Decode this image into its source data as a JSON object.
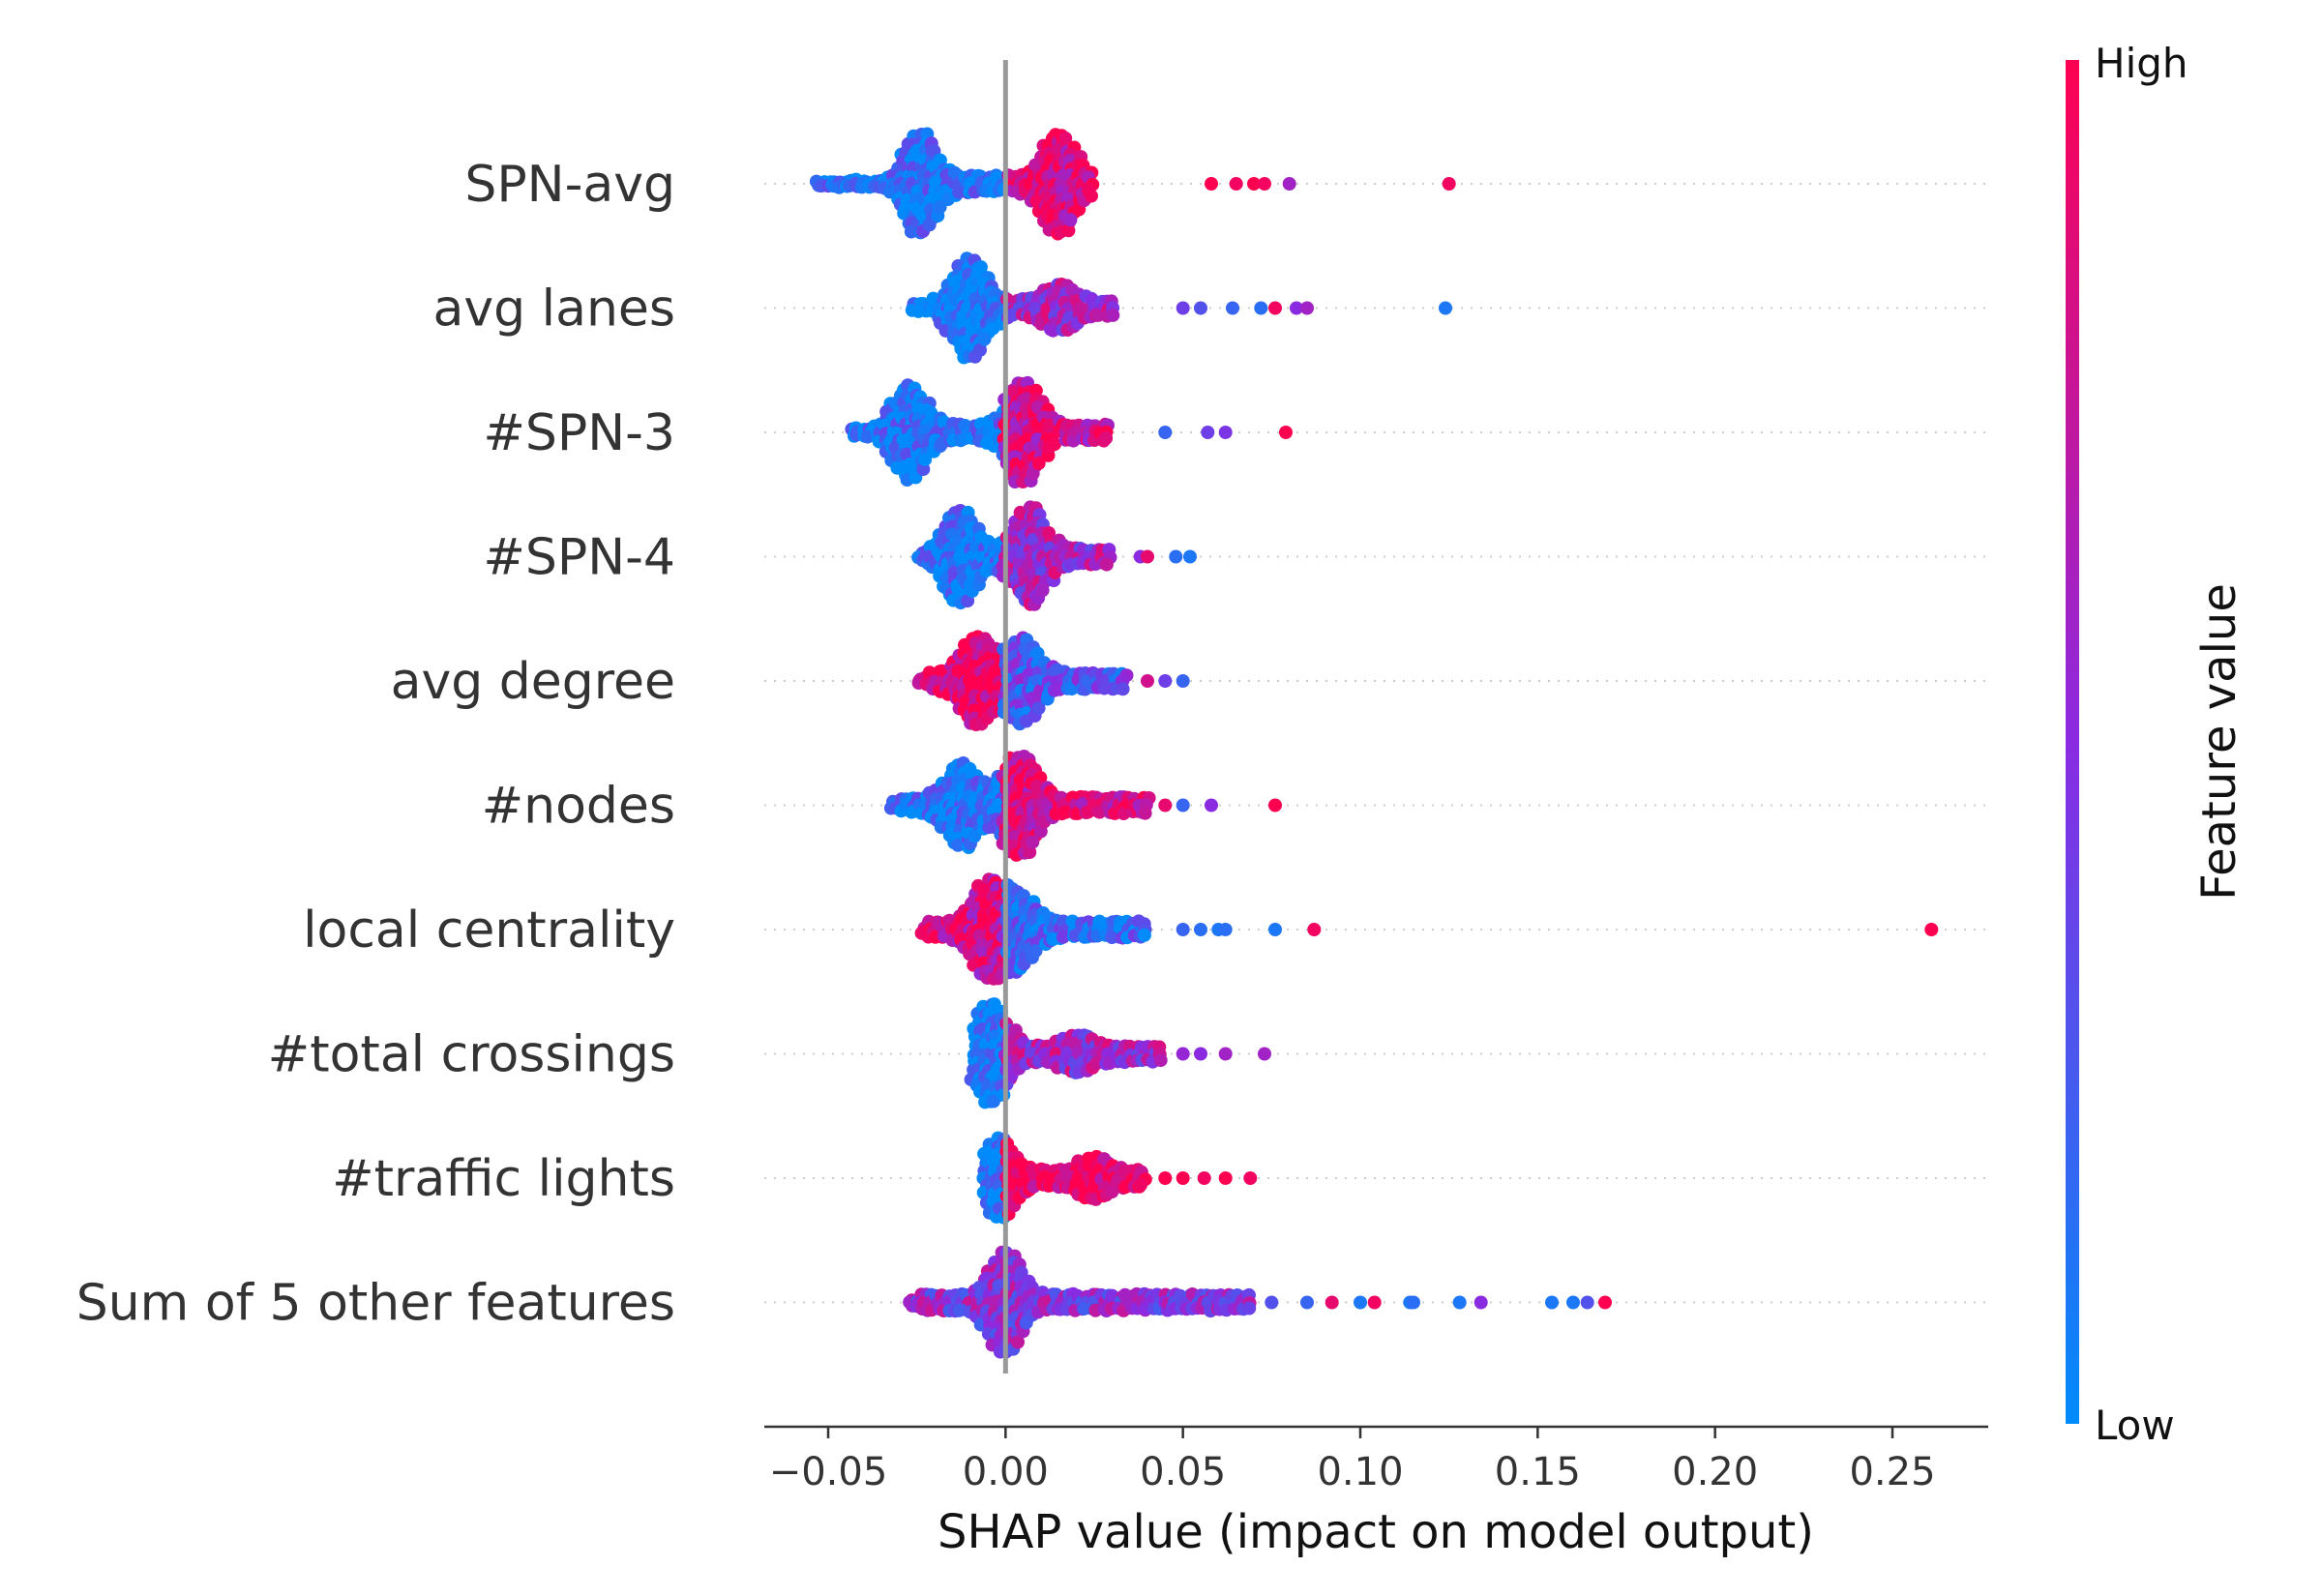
{
  "chart_data": {
    "type": "scatter",
    "subtype": "shap-beeswarm",
    "xlabel": "SHAP value (impact on model output)",
    "xlim": [
      -0.068,
      0.277
    ],
    "x_ticks": [
      -0.05,
      0.0,
      0.05,
      0.1,
      0.15,
      0.2,
      0.25
    ],
    "x_tick_labels": [
      "−0.05",
      "0.00",
      "0.05",
      "0.10",
      "0.15",
      "0.20",
      "0.25"
    ],
    "zero_line": 0.0,
    "colorbar": {
      "title": "Feature value",
      "high_label": "High",
      "low_label": "Low",
      "low_color": "#008bfb",
      "high_color": "#ff0051",
      "mid_color": "#8a2be2"
    },
    "features": [
      {
        "name": "SPN-avg",
        "min": -0.053,
        "max": 0.125,
        "core_min": -0.03,
        "core_max": 0.025,
        "peaks": [
          {
            "x": -0.024,
            "h": 0.95
          },
          {
            "x": 0.015,
            "h": 1.0
          }
        ],
        "neg_color": 0.1,
        "pos_color": 0.85,
        "outliers": [
          {
            "x": 0.058,
            "c": 1.0
          },
          {
            "x": 0.065,
            "c": 0.95
          },
          {
            "x": 0.07,
            "c": 1.0
          },
          {
            "x": 0.073,
            "c": 0.95
          },
          {
            "x": 0.08,
            "c": 0.6
          },
          {
            "x": 0.125,
            "c": 0.95
          }
        ]
      },
      {
        "name": "avg lanes",
        "min": -0.026,
        "max": 0.124,
        "core_min": -0.02,
        "core_max": 0.03,
        "peaks": [
          {
            "x": -0.01,
            "h": 1.0
          },
          {
            "x": 0.015,
            "h": 0.35
          }
        ],
        "neg_color": 0.05,
        "pos_color": 0.6,
        "outliers": [
          {
            "x": 0.05,
            "c": 0.4
          },
          {
            "x": 0.055,
            "c": 0.3
          },
          {
            "x": 0.064,
            "c": 0.2
          },
          {
            "x": 0.072,
            "c": 0.15
          },
          {
            "x": 0.076,
            "c": 0.95
          },
          {
            "x": 0.082,
            "c": 0.5
          },
          {
            "x": 0.085,
            "c": 0.6
          },
          {
            "x": 0.124,
            "c": 0.1
          }
        ]
      },
      {
        "name": "#SPN-3",
        "min": -0.043,
        "max": 0.079,
        "core_min": -0.035,
        "core_max": 0.03,
        "peaks": [
          {
            "x": -0.027,
            "h": 0.85
          },
          {
            "x": 0.005,
            "h": 1.0
          }
        ],
        "neg_color": 0.1,
        "pos_color": 0.8,
        "outliers": [
          {
            "x": 0.045,
            "c": 0.2
          },
          {
            "x": 0.057,
            "c": 0.4
          },
          {
            "x": 0.062,
            "c": 0.45
          },
          {
            "x": 0.079,
            "c": 1.0
          }
        ]
      },
      {
        "name": "#SPN-4",
        "min": -0.024,
        "max": 0.052,
        "core_min": -0.02,
        "core_max": 0.03,
        "peaks": [
          {
            "x": -0.013,
            "h": 0.85
          },
          {
            "x": 0.007,
            "h": 0.9
          }
        ],
        "neg_color": 0.1,
        "pos_color": 0.6,
        "outliers": [
          {
            "x": 0.038,
            "c": 0.5
          },
          {
            "x": 0.04,
            "c": 0.9
          },
          {
            "x": 0.048,
            "c": 0.15
          },
          {
            "x": 0.052,
            "c": 0.1
          }
        ]
      },
      {
        "name": "avg degree",
        "min": -0.024,
        "max": 0.05,
        "core_min": -0.022,
        "core_max": 0.035,
        "peaks": [
          {
            "x": -0.008,
            "h": 0.8
          },
          {
            "x": 0.005,
            "h": 0.75
          }
        ],
        "neg_color": 0.9,
        "pos_color": 0.3,
        "outliers": [
          {
            "x": 0.04,
            "c": 0.8
          },
          {
            "x": 0.045,
            "c": 0.4
          },
          {
            "x": 0.05,
            "c": 0.2
          }
        ]
      },
      {
        "name": "#nodes",
        "min": -0.032,
        "max": 0.076,
        "core_min": -0.03,
        "core_max": 0.04,
        "peaks": [
          {
            "x": -0.012,
            "h": 0.75
          },
          {
            "x": 0.004,
            "h": 1.0
          }
        ],
        "neg_color": 0.1,
        "pos_color": 0.85,
        "outliers": [
          {
            "x": 0.045,
            "c": 0.9
          },
          {
            "x": 0.05,
            "c": 0.2
          },
          {
            "x": 0.058,
            "c": 0.5
          },
          {
            "x": 0.076,
            "c": 1.0
          }
        ]
      },
      {
        "name": "local centrality",
        "min": -0.023,
        "max": 0.261,
        "core_min": -0.022,
        "core_max": 0.04,
        "peaks": [
          {
            "x": -0.005,
            "h": 0.85
          },
          {
            "x": 0.004,
            "h": 0.6
          }
        ],
        "neg_color": 0.8,
        "pos_color": 0.15,
        "outliers": [
          {
            "x": 0.05,
            "c": 0.2
          },
          {
            "x": 0.055,
            "c": 0.15
          },
          {
            "x": 0.06,
            "c": 0.1
          },
          {
            "x": 0.062,
            "c": 0.15
          },
          {
            "x": 0.076,
            "c": 0.1
          },
          {
            "x": 0.087,
            "c": 0.95
          },
          {
            "x": 0.261,
            "c": 1.0
          }
        ]
      },
      {
        "name": "#total crossings",
        "min": -0.009,
        "max": 0.073,
        "core_min": -0.009,
        "core_max": 0.045,
        "peaks": [
          {
            "x": -0.004,
            "h": 0.95
          },
          {
            "x": 0.02,
            "h": 0.25
          }
        ],
        "neg_color": 0.05,
        "pos_color": 0.6,
        "outliers": [
          {
            "x": 0.05,
            "c": 0.55
          },
          {
            "x": 0.055,
            "c": 0.5
          },
          {
            "x": 0.062,
            "c": 0.6
          },
          {
            "x": 0.073,
            "c": 0.6
          }
        ]
      },
      {
        "name": "#traffic lights",
        "min": -0.006,
        "max": 0.069,
        "core_min": -0.005,
        "core_max": 0.04,
        "peaks": [
          {
            "x": -0.002,
            "h": 0.7
          },
          {
            "x": 0.025,
            "h": 0.3
          }
        ],
        "neg_color": 0.05,
        "pos_color": 0.98,
        "outliers": [
          {
            "x": 0.045,
            "c": 1.0
          },
          {
            "x": 0.05,
            "c": 1.0
          },
          {
            "x": 0.056,
            "c": 0.95
          },
          {
            "x": 0.062,
            "c": 1.0
          },
          {
            "x": 0.069,
            "c": 0.95
          }
        ]
      },
      {
        "name": "Sum of 5 other features",
        "min": -0.027,
        "max": 0.169,
        "core_min": -0.025,
        "core_max": 0.07,
        "peaks": [
          {
            "x": 0.0,
            "h": 0.95
          }
        ],
        "neg_color": 0.5,
        "pos_color": 0.5,
        "outliers": [
          {
            "x": 0.075,
            "c": 0.3
          },
          {
            "x": 0.085,
            "c": 0.2
          },
          {
            "x": 0.092,
            "c": 0.9
          },
          {
            "x": 0.1,
            "c": 0.1
          },
          {
            "x": 0.104,
            "c": 0.95
          },
          {
            "x": 0.114,
            "c": 0.1
          },
          {
            "x": 0.115,
            "c": 0.15
          },
          {
            "x": 0.128,
            "c": 0.1
          },
          {
            "x": 0.134,
            "c": 0.5
          },
          {
            "x": 0.154,
            "c": 0.1
          },
          {
            "x": 0.16,
            "c": 0.1
          },
          {
            "x": 0.164,
            "c": 0.3
          },
          {
            "x": 0.169,
            "c": 1.0
          }
        ]
      }
    ]
  }
}
